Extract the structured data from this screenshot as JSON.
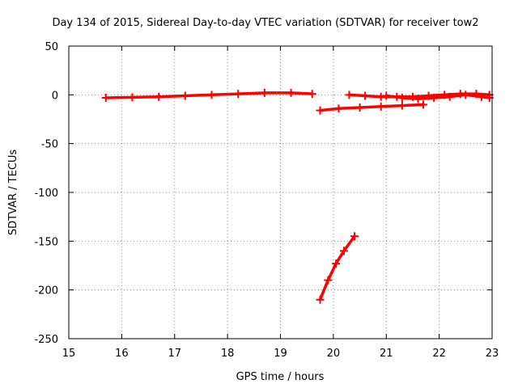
{
  "chart_data": {
    "type": "scatter",
    "title": "Day 134 of 2015, Sidereal Day-to-day VTEC variation (SDTVAR) for receiver tow2",
    "xlabel": "GPS time / hours",
    "ylabel": "SDTVAR / TECUs",
    "xlim": [
      15,
      23
    ],
    "ylim": [
      -250,
      50
    ],
    "x_ticks": [
      15,
      16,
      17,
      18,
      19,
      20,
      21,
      22,
      23
    ],
    "y_ticks": [
      -250,
      -200,
      -150,
      -100,
      -50,
      0,
      50
    ],
    "grid": true,
    "grid_style": "dotted",
    "series_color": "#ff0000",
    "marker": "plus",
    "series": [
      {
        "segments": [
          {
            "x": [
              15.7,
              16.2,
              16.7,
              17.2,
              17.7,
              18.2,
              18.7,
              19.2,
              19.6
            ],
            "y": [
              -3,
              -2.5,
              -2,
              -1,
              0,
              1,
              2,
              2,
              1
            ]
          },
          {
            "x": [
              19.75,
              20.1,
              20.5,
              20.9,
              21.3,
              21.7
            ],
            "y": [
              -16,
              -14,
              -13,
              -12,
              -11,
              -10
            ]
          },
          {
            "x": [
              20.3,
              20.6,
              20.9,
              21.2,
              21.5,
              21.8,
              22.1,
              22.4,
              22.7,
              22.95
            ],
            "y": [
              0,
              -1,
              -2,
              -2,
              -2,
              -1,
              0,
              1,
              1,
              0
            ]
          },
          {
            "x": [
              21.0,
              21.3,
              21.6,
              21.9,
              22.2,
              22.5,
              22.8,
              22.95
            ],
            "y": [
              -1,
              -3,
              -4,
              -3,
              -2,
              0,
              -2,
              -3
            ]
          },
          {
            "x": [
              19.75,
              19.9,
              20.05,
              20.2,
              20.4
            ],
            "y": [
              -210,
              -190,
              -173,
              -160,
              -145
            ]
          }
        ]
      }
    ]
  }
}
